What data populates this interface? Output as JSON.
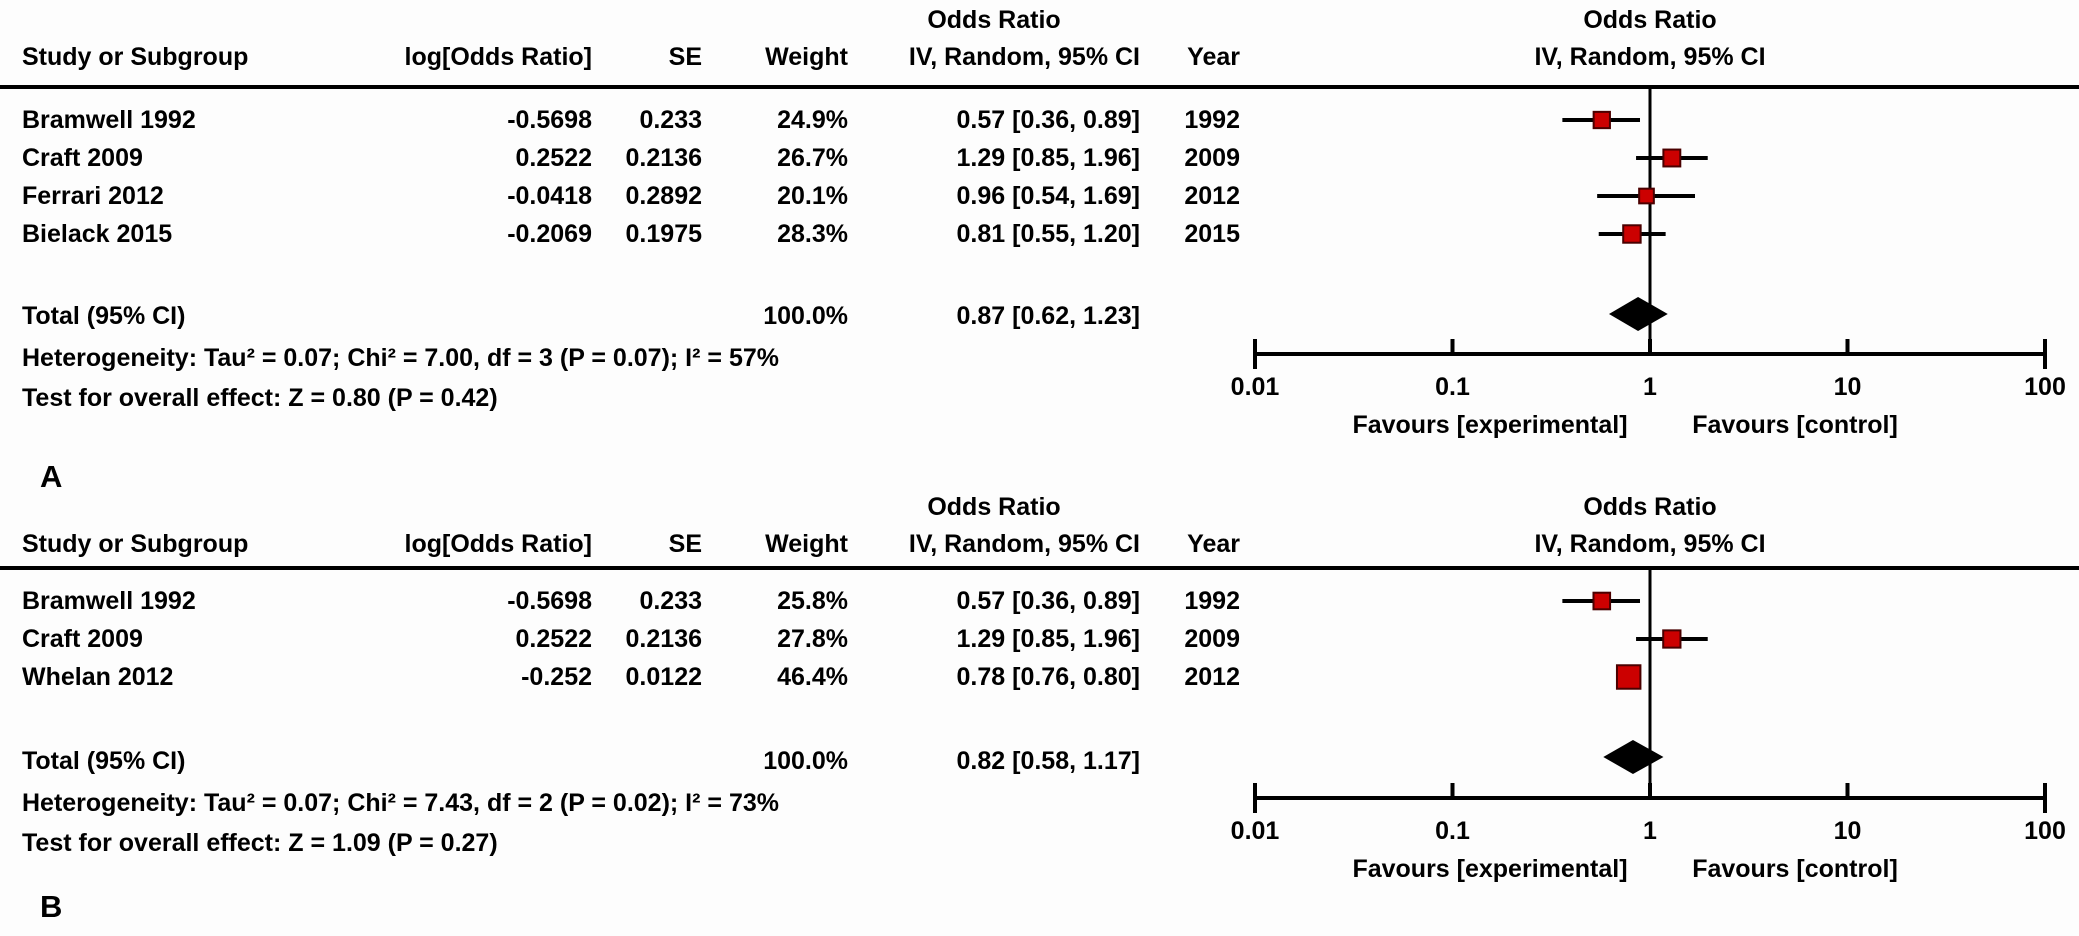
{
  "colors": {
    "line": "#000000",
    "marker_fill": "#CC0000",
    "marker_edge": "#4A0000",
    "diamond": "#000000",
    "background": "#FDFDFD"
  },
  "chart_data": [
    {
      "type": "forest",
      "panel_label": "A",
      "effect_measure": "Odds Ratio",
      "model": "IV, Random, 95% CI",
      "scale": "log",
      "xlim": [
        0.01,
        100
      ],
      "columns": {
        "study": "Study or Subgroup",
        "log_or": "log[Odds Ratio]",
        "se": "SE",
        "weight": "Weight",
        "or_title": "Odds Ratio",
        "ci": "IV, Random, 95% CI",
        "year": "Year"
      },
      "studies": [
        {
          "name": "Bramwell 1992",
          "log_or": "-0.5698",
          "se": "0.233",
          "weight": "24.9%",
          "ci_text": "0.57 [0.36, 0.89]",
          "year": "1992",
          "or": 0.57,
          "ci_low": 0.36,
          "ci_high": 0.89,
          "weight_pct": 24.9
        },
        {
          "name": "Craft 2009",
          "log_or": "0.2522",
          "se": "0.2136",
          "weight": "26.7%",
          "ci_text": "1.29 [0.85, 1.96]",
          "year": "2009",
          "or": 1.29,
          "ci_low": 0.85,
          "ci_high": 1.96,
          "weight_pct": 26.7
        },
        {
          "name": "Ferrari 2012",
          "log_or": "-0.0418",
          "se": "0.2892",
          "weight": "20.1%",
          "ci_text": "0.96 [0.54, 1.69]",
          "year": "2012",
          "or": 0.96,
          "ci_low": 0.54,
          "ci_high": 1.69,
          "weight_pct": 20.1
        },
        {
          "name": "Bielack 2015",
          "log_or": "-0.2069",
          "se": "0.1975",
          "weight": "28.3%",
          "ci_text": "0.81 [0.55, 1.20]",
          "year": "2015",
          "or": 0.81,
          "ci_low": 0.55,
          "ci_high": 1.2,
          "weight_pct": 28.3
        }
      ],
      "total": {
        "label": "Total (95% CI)",
        "weight": "100.0%",
        "ci_text": "0.87 [0.62, 1.23]",
        "or": 0.87,
        "ci_low": 0.62,
        "ci_high": 1.23
      },
      "heterogeneity": "Heterogeneity: Tau² = 0.07; Chi² = 7.00, df = 3 (P = 0.07); I² = 57%",
      "overall_effect": "Test for overall effect: Z = 0.80 (P = 0.42)",
      "axis": {
        "ticks": [
          "0.01",
          "0.1",
          "1",
          "10",
          "100"
        ]
      },
      "footer": {
        "favours_left": "Favours [experimental]",
        "favours_right": "Favours [control]"
      }
    },
    {
      "type": "forest",
      "panel_label": "B",
      "effect_measure": "Odds Ratio",
      "model": "IV, Random, 95% CI",
      "scale": "log",
      "xlim": [
        0.01,
        100
      ],
      "columns": {
        "study": "Study or Subgroup",
        "log_or": "log[Odds Ratio]",
        "se": "SE",
        "weight": "Weight",
        "or_title": "Odds Ratio",
        "ci": "IV, Random, 95% CI",
        "year": "Year"
      },
      "studies": [
        {
          "name": "Bramwell 1992",
          "log_or": "-0.5698",
          "se": "0.233",
          "weight": "25.8%",
          "ci_text": "0.57 [0.36, 0.89]",
          "year": "1992",
          "or": 0.57,
          "ci_low": 0.36,
          "ci_high": 0.89,
          "weight_pct": 25.8
        },
        {
          "name": "Craft 2009",
          "log_or": "0.2522",
          "se": "0.2136",
          "weight": "27.8%",
          "ci_text": "1.29 [0.85, 1.96]",
          "year": "2009",
          "or": 1.29,
          "ci_low": 0.85,
          "ci_high": 1.96,
          "weight_pct": 27.8
        },
        {
          "name": "Whelan 2012",
          "log_or": "-0.252",
          "se": "0.0122",
          "weight": "46.4%",
          "ci_text": "0.78 [0.76, 0.80]",
          "year": "2012",
          "or": 0.78,
          "ci_low": 0.76,
          "ci_high": 0.8,
          "weight_pct": 46.4
        }
      ],
      "total": {
        "label": "Total (95% CI)",
        "weight": "100.0%",
        "ci_text": "0.82 [0.58, 1.17]",
        "or": 0.82,
        "ci_low": 0.58,
        "ci_high": 1.17
      },
      "heterogeneity": "Heterogeneity: Tau² = 0.07; Chi² = 7.43, df = 2 (P = 0.02); I² = 73%",
      "overall_effect": "Test for overall effect: Z = 1.09 (P = 0.27)",
      "axis": {
        "ticks": [
          "0.01",
          "0.1",
          "1",
          "10",
          "100"
        ]
      },
      "footer": {
        "favours_left": "Favours [experimental]",
        "favours_right": "Favours [control]"
      }
    }
  ]
}
